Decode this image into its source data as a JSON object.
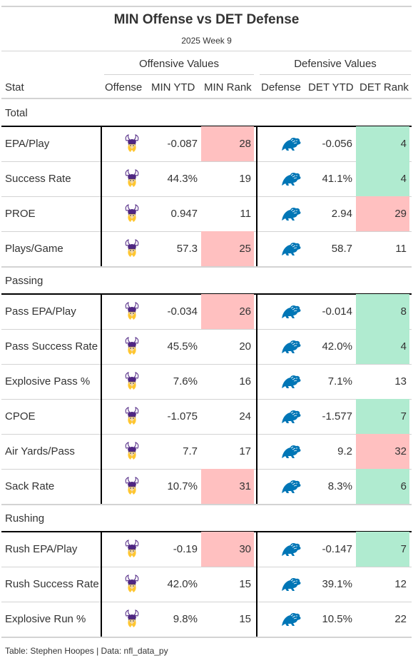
{
  "header": {
    "title": "MIN Offense vs DET Defense",
    "subtitle": "2025 Week 9"
  },
  "spanners": {
    "offense": "Offensive Values",
    "defense": "Defensive Values"
  },
  "columns": {
    "stat": "Stat",
    "offense": "Offense",
    "min_ytd": "MIN YTD",
    "min_rank": "MIN Rank",
    "defense": "Defense",
    "det_ytd": "DET YTD",
    "det_rank": "DET Rank"
  },
  "colors": {
    "bad": "#ffc0c0",
    "good": "#b0ebd0"
  },
  "logos": {
    "offense": "vikings-logo-icon",
    "defense": "lions-logo-icon"
  },
  "groups": [
    {
      "label": "Total",
      "rows": [
        {
          "stat": "EPA/Play",
          "min_ytd": "-0.087",
          "min_rank": "28",
          "min_rank_color": "bad",
          "det_ytd": "-0.056",
          "det_rank": "4",
          "det_rank_color": "good"
        },
        {
          "stat": "Success Rate",
          "min_ytd": "44.3%",
          "min_rank": "19",
          "min_rank_color": "",
          "det_ytd": "41.1%",
          "det_rank": "4",
          "det_rank_color": "good"
        },
        {
          "stat": "PROE",
          "min_ytd": "0.947",
          "min_rank": "11",
          "min_rank_color": "",
          "det_ytd": "2.94",
          "det_rank": "29",
          "det_rank_color": "bad"
        },
        {
          "stat": "Plays/Game",
          "min_ytd": "57.3",
          "min_rank": "25",
          "min_rank_color": "bad",
          "det_ytd": "58.7",
          "det_rank": "11",
          "det_rank_color": ""
        }
      ]
    },
    {
      "label": "Passing",
      "rows": [
        {
          "stat": "Pass EPA/Play",
          "min_ytd": "-0.034",
          "min_rank": "26",
          "min_rank_color": "bad",
          "det_ytd": "-0.014",
          "det_rank": "8",
          "det_rank_color": "good"
        },
        {
          "stat": "Pass Success Rate",
          "min_ytd": "45.5%",
          "min_rank": "20",
          "min_rank_color": "",
          "det_ytd": "42.0%",
          "det_rank": "4",
          "det_rank_color": "good"
        },
        {
          "stat": "Explosive Pass %",
          "min_ytd": "7.6%",
          "min_rank": "16",
          "min_rank_color": "",
          "det_ytd": "7.1%",
          "det_rank": "13",
          "det_rank_color": ""
        },
        {
          "stat": "CPOE",
          "min_ytd": "-1.075",
          "min_rank": "24",
          "min_rank_color": "",
          "det_ytd": "-1.577",
          "det_rank": "7",
          "det_rank_color": "good"
        },
        {
          "stat": "Air Yards/Pass",
          "min_ytd": "7.7",
          "min_rank": "17",
          "min_rank_color": "",
          "det_ytd": "9.2",
          "det_rank": "32",
          "det_rank_color": "bad"
        },
        {
          "stat": "Sack Rate",
          "min_ytd": "10.7%",
          "min_rank": "31",
          "min_rank_color": "bad",
          "det_ytd": "8.3%",
          "det_rank": "6",
          "det_rank_color": "good"
        }
      ]
    },
    {
      "label": "Rushing",
      "rows": [
        {
          "stat": "Rush EPA/Play",
          "min_ytd": "-0.19",
          "min_rank": "30",
          "min_rank_color": "bad",
          "det_ytd": "-0.147",
          "det_rank": "7",
          "det_rank_color": "good"
        },
        {
          "stat": "Rush Success Rate",
          "min_ytd": "42.0%",
          "min_rank": "15",
          "min_rank_color": "",
          "det_ytd": "39.1%",
          "det_rank": "12",
          "det_rank_color": ""
        },
        {
          "stat": "Explosive Run %",
          "min_ytd": "9.8%",
          "min_rank": "15",
          "min_rank_color": "",
          "det_ytd": "10.5%",
          "det_rank": "22",
          "det_rank_color": ""
        }
      ]
    }
  ],
  "footer": "Table: Stephen Hoopes | Data: nfl_data_py"
}
